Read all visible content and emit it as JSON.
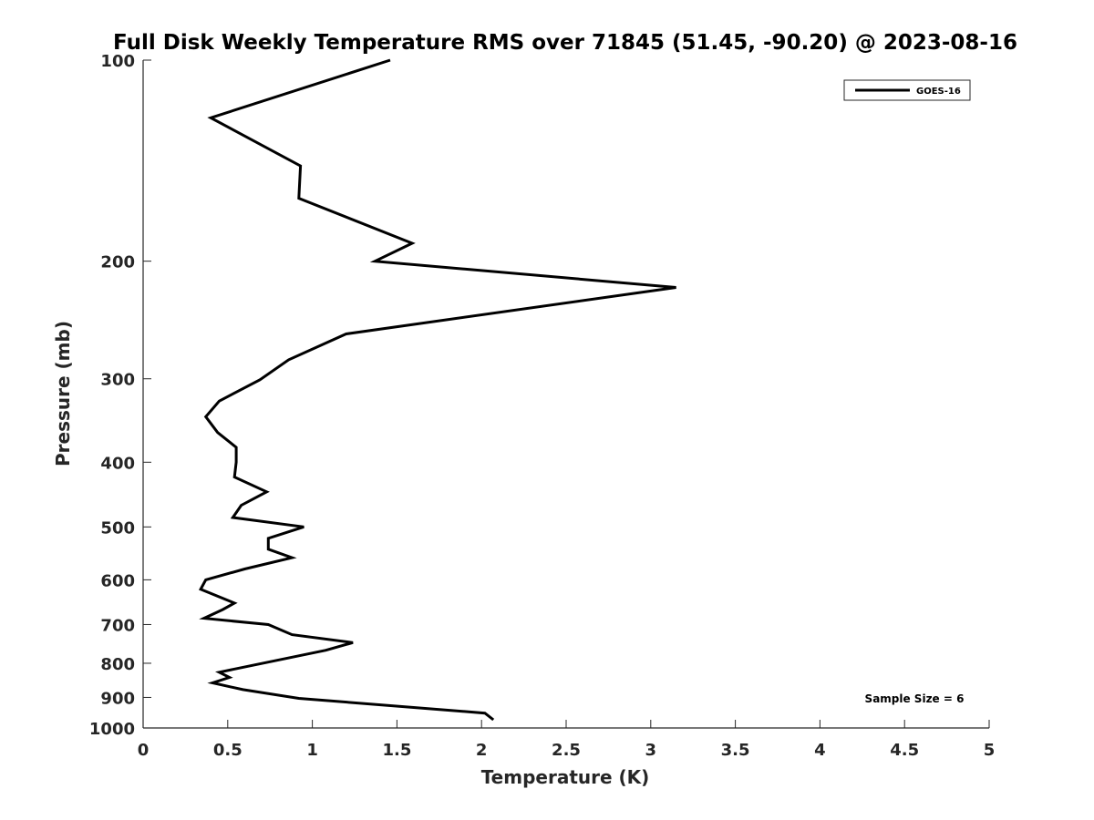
{
  "chart_data": {
    "type": "line",
    "title": "Full Disk Weekly Temperature RMS over 71845 (51.45, -90.20) @ 2023-08-16",
    "xlabel": "Temperature (K)",
    "ylabel": "Pressure (mb)",
    "xlim": [
      0,
      5
    ],
    "ylim": [
      100,
      1000
    ],
    "y_scale": "log",
    "y_reversed": true,
    "xticks": [
      0,
      0.5,
      1,
      1.5,
      2,
      2.5,
      3,
      3.5,
      4,
      4.5,
      5
    ],
    "xtick_labels": [
      "0",
      "0.5",
      "1",
      "1.5",
      "2",
      "2.5",
      "3",
      "3.5",
      "4",
      "4.5",
      "5"
    ],
    "yticks": [
      100,
      200,
      300,
      400,
      500,
      600,
      700,
      800,
      900,
      1000
    ],
    "ytick_labels": [
      "100",
      "200",
      "300",
      "400",
      "500",
      "600",
      "700",
      "800",
      "900",
      "1000"
    ],
    "grid": false,
    "legend_position": "top-right",
    "annotation": "Sample Size = 6",
    "series": [
      {
        "name": "GOES-16",
        "color": "#000000",
        "points": [
          {
            "x": 1.46,
            "y": 100
          },
          {
            "x": 0.4,
            "y": 122
          },
          {
            "x": 0.93,
            "y": 144
          },
          {
            "x": 0.92,
            "y": 161
          },
          {
            "x": 1.59,
            "y": 188
          },
          {
            "x": 1.37,
            "y": 200
          },
          {
            "x": 3.15,
            "y": 219
          },
          {
            "x": 1.2,
            "y": 257
          },
          {
            "x": 0.86,
            "y": 281
          },
          {
            "x": 0.69,
            "y": 301
          },
          {
            "x": 0.45,
            "y": 324
          },
          {
            "x": 0.37,
            "y": 342
          },
          {
            "x": 0.44,
            "y": 361
          },
          {
            "x": 0.55,
            "y": 380
          },
          {
            "x": 0.55,
            "y": 400
          },
          {
            "x": 0.54,
            "y": 421
          },
          {
            "x": 0.73,
            "y": 443
          },
          {
            "x": 0.58,
            "y": 464
          },
          {
            "x": 0.53,
            "y": 484
          },
          {
            "x": 0.95,
            "y": 500
          },
          {
            "x": 0.74,
            "y": 520
          },
          {
            "x": 0.74,
            "y": 540
          },
          {
            "x": 0.88,
            "y": 556
          },
          {
            "x": 0.6,
            "y": 578
          },
          {
            "x": 0.37,
            "y": 600
          },
          {
            "x": 0.34,
            "y": 620
          },
          {
            "x": 0.54,
            "y": 650
          },
          {
            "x": 0.47,
            "y": 665
          },
          {
            "x": 0.36,
            "y": 685
          },
          {
            "x": 0.74,
            "y": 700
          },
          {
            "x": 0.88,
            "y": 725
          },
          {
            "x": 1.24,
            "y": 745
          },
          {
            "x": 1.08,
            "y": 765
          },
          {
            "x": 0.45,
            "y": 825
          },
          {
            "x": 0.51,
            "y": 840
          },
          {
            "x": 0.41,
            "y": 856
          },
          {
            "x": 0.59,
            "y": 876
          },
          {
            "x": 0.92,
            "y": 903
          },
          {
            "x": 2.02,
            "y": 950
          },
          {
            "x": 2.07,
            "y": 972
          }
        ]
      }
    ]
  }
}
